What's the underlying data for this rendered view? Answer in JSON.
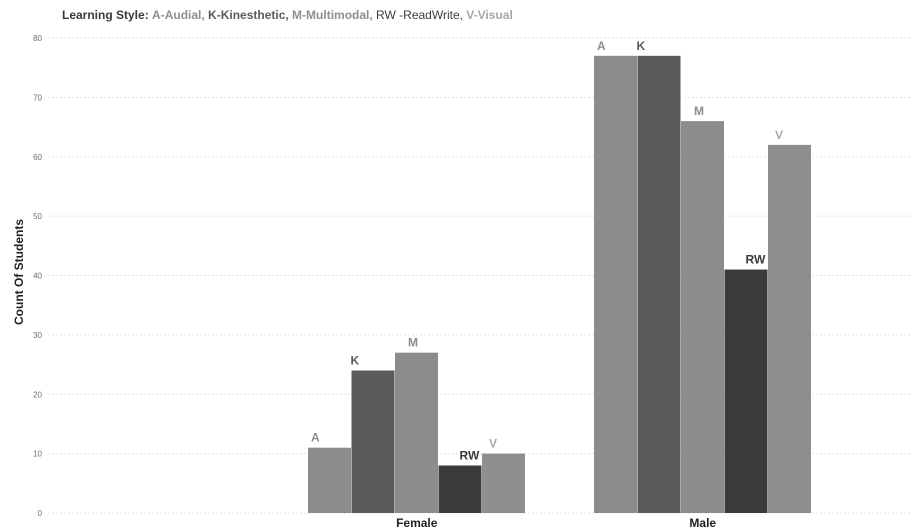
{
  "legend": {
    "lead": "Learning Style:",
    "items": [
      {
        "key": "A",
        "text": "A-Audial",
        "color": "#8f8f8f"
      },
      {
        "key": "K",
        "text": "K-Kinesthetic",
        "color": "#5c5c5c"
      },
      {
        "key": "M",
        "text": "M-Multimodal",
        "color": "#8f8f8f"
      },
      {
        "key": "RW",
        "text": "RW -ReadWrite",
        "color": "#3c3c3c"
      },
      {
        "key": "V",
        "text": "V-Visual",
        "color": "#a8a8a8"
      }
    ]
  },
  "chart_data": {
    "type": "bar",
    "categories": [
      "Female",
      "Male"
    ],
    "series": [
      {
        "name": "A",
        "values": [
          11,
          77
        ],
        "color": "#8c8c8c",
        "label_color": "#8c8c8c"
      },
      {
        "name": "K",
        "values": [
          24,
          77
        ],
        "color": "#5a5a5a",
        "label_color": "#5a5a5a"
      },
      {
        "name": "M",
        "values": [
          27,
          66
        ],
        "color": "#8c8c8c",
        "label_color": "#8c8c8c"
      },
      {
        "name": "RW",
        "values": [
          8,
          41
        ],
        "color": "#3b3b3b",
        "label_color": "#3b3b3b"
      },
      {
        "name": "V",
        "values": [
          10,
          62
        ],
        "color": "#8f8f8f",
        "label_color": "#a8a8a8"
      }
    ],
    "ylabel": "Count Of Students",
    "xlabel": "",
    "ylim": [
      0,
      80
    ],
    "yticks": [
      0,
      10,
      20,
      30,
      40,
      50,
      60,
      70,
      80
    ],
    "grid": true,
    "legend_position": "top-left"
  }
}
